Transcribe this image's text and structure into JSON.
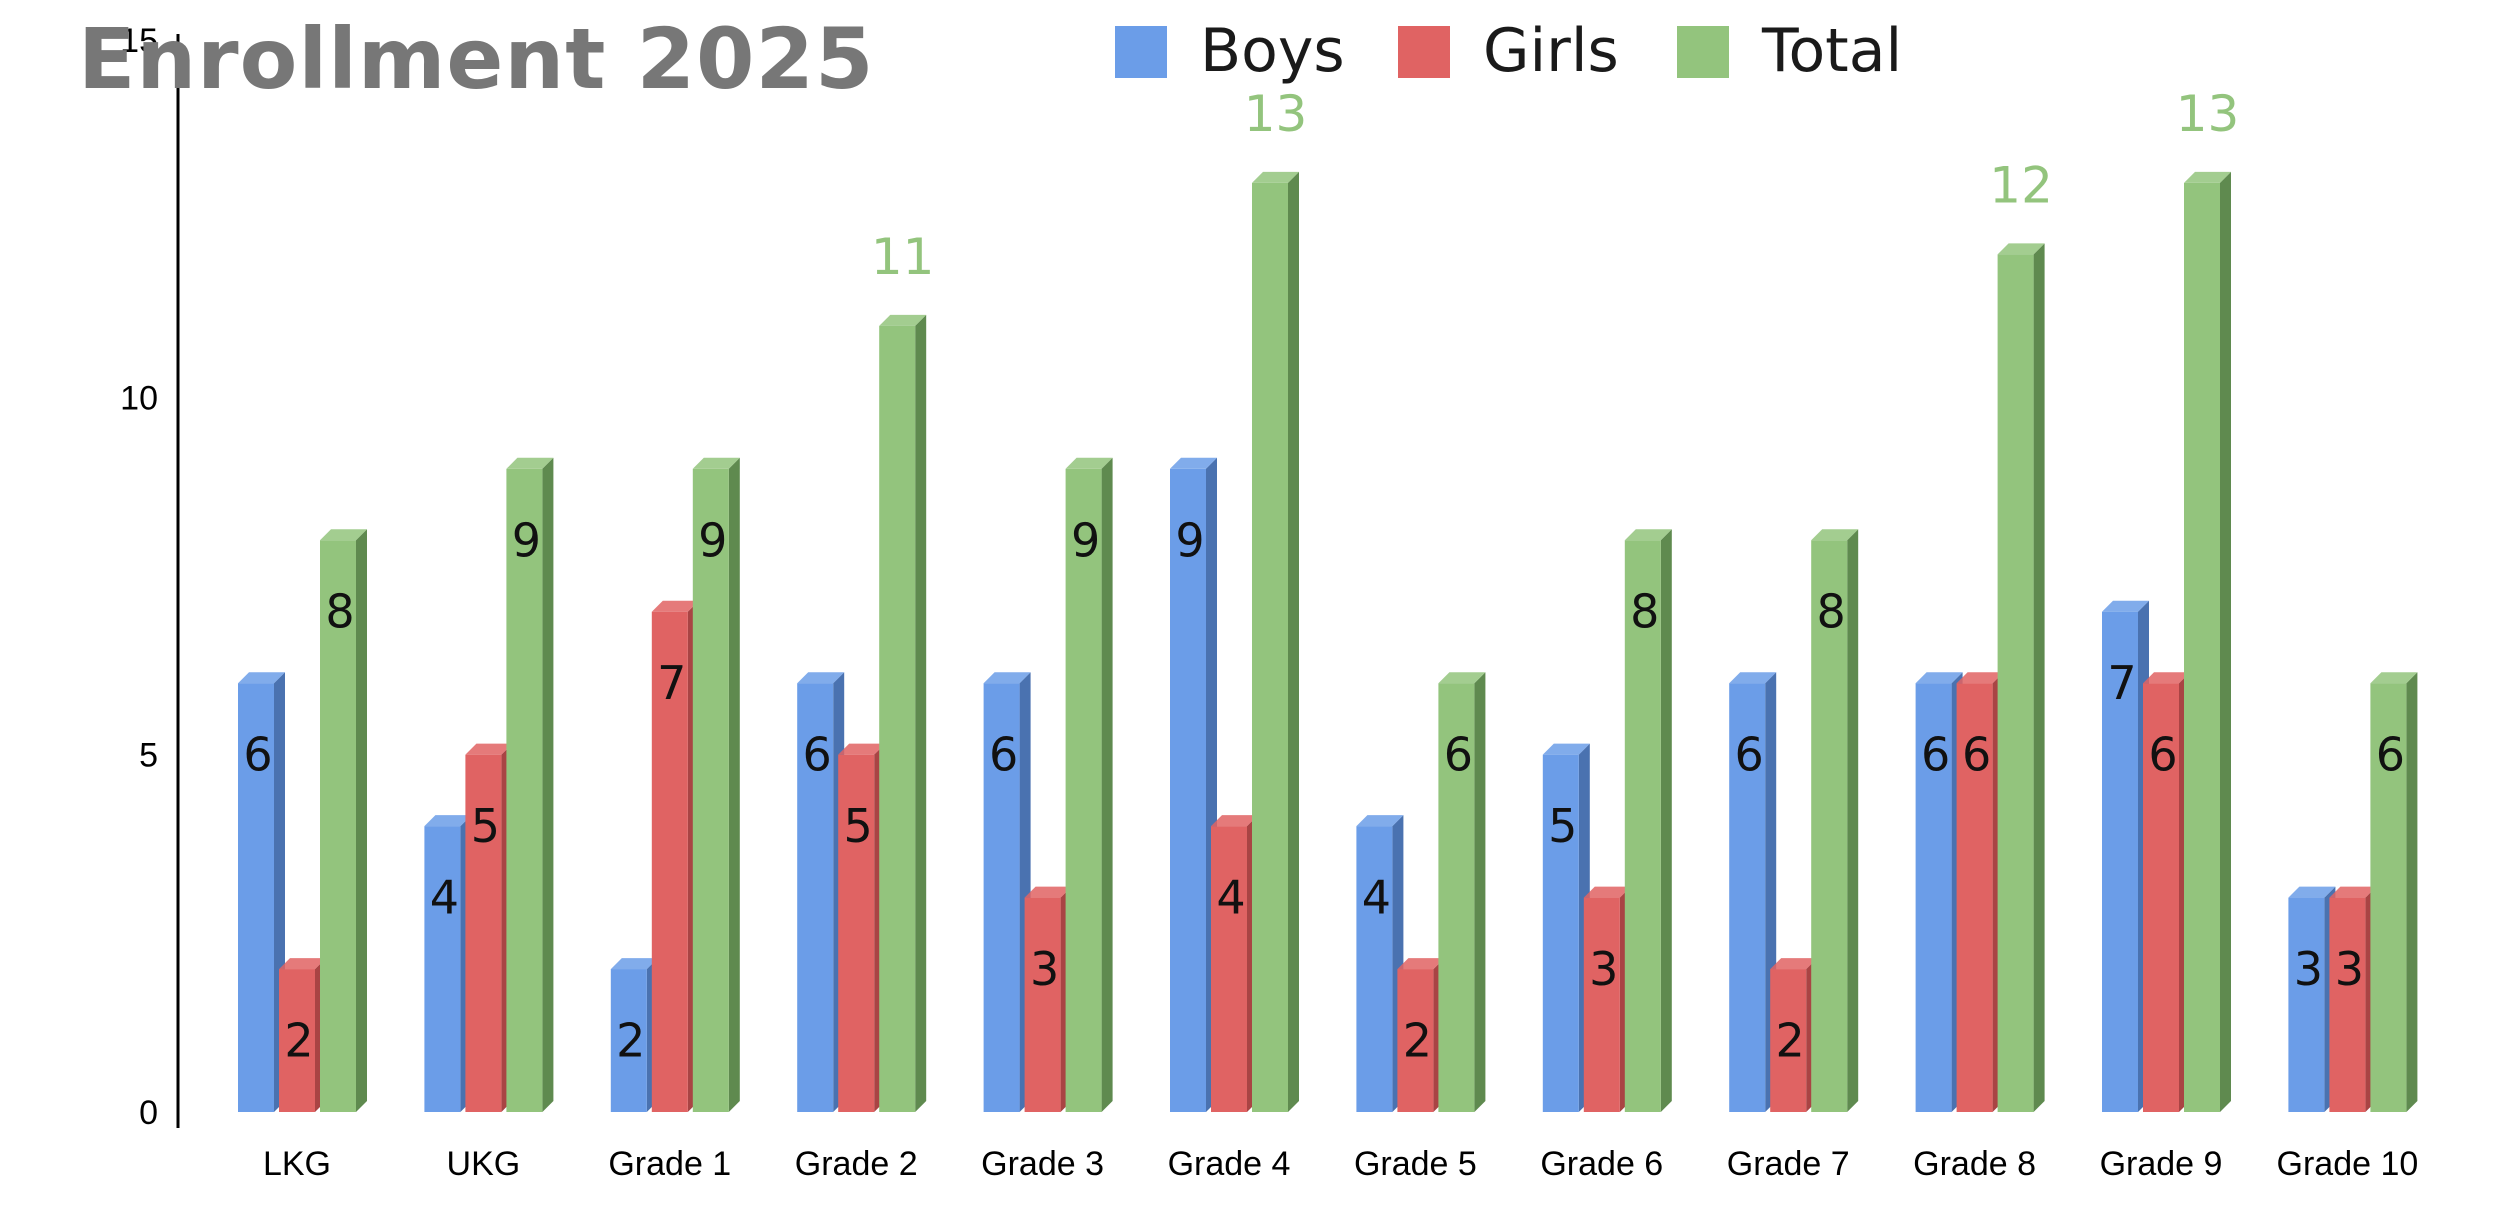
{
  "chart_data": {
    "type": "bar",
    "title": "Enrollment 2025",
    "xlabel": "",
    "ylabel": "",
    "ylim": [
      0,
      15
    ],
    "yticks": [
      0,
      5,
      10,
      15
    ],
    "grid": false,
    "legend_position": "top",
    "categories": [
      "LKG",
      "UKG",
      "Grade 1",
      "Grade 2",
      "Grade 3",
      "Grade 4",
      "Grade 5",
      "Grade 6",
      "Grade 7",
      "Grade 8",
      "Grade 9",
      "Grade 10"
    ],
    "series": [
      {
        "name": "Boys",
        "color": "#6b9de8",
        "side_color": "#4a72b0",
        "values": [
          6,
          4,
          2,
          6,
          6,
          9,
          4,
          5,
          6,
          6,
          7,
          3
        ]
      },
      {
        "name": "Girls",
        "color": "#e06363",
        "side_color": "#a94444",
        "values": [
          2,
          5,
          7,
          5,
          3,
          4,
          2,
          3,
          2,
          6,
          6,
          3
        ]
      },
      {
        "name": "Total",
        "color": "#93c47d",
        "side_color": "#5f8a4f",
        "values": [
          8,
          9,
          9,
          11,
          9,
          13,
          6,
          8,
          8,
          12,
          13,
          6
        ]
      }
    ],
    "label_colors": {
      "inside": "#111111",
      "above": "#93c47d"
    }
  }
}
